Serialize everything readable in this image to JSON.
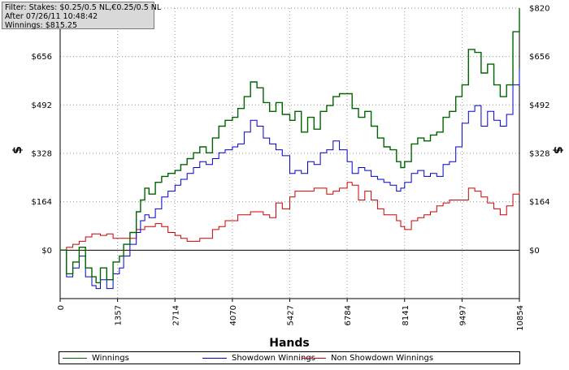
{
  "info": {
    "filter": "Filter: Stakes: $0.25/0.5 NL,€0.25/0.5 NL",
    "after": "After 07/26/11 10:48:42",
    "winnings": "Winnings: $815.25"
  },
  "chart_data": {
    "type": "line",
    "xlabel": "Hands",
    "ylabel": "$",
    "xlim": [
      0,
      10854
    ],
    "ylim": [
      -164,
      820
    ],
    "x_ticks": [
      "0",
      "1357",
      "2714",
      "4070",
      "5427",
      "6784",
      "8141",
      "9497",
      "10854"
    ],
    "y_ticks": [
      "$820",
      "$656",
      "$492",
      "$328",
      "$164",
      "$0"
    ],
    "y_tick_values": [
      820,
      656,
      492,
      328,
      164,
      0
    ],
    "grid": "dotted",
    "legend_position": "bottom",
    "series": [
      {
        "name": "Winnings",
        "color": "#006400",
        "x": [
          0,
          150,
          300,
          450,
          600,
          750,
          850,
          950,
          1100,
          1250,
          1400,
          1500,
          1650,
          1800,
          1900,
          2000,
          2100,
          2250,
          2400,
          2550,
          2714,
          2850,
          3000,
          3150,
          3300,
          3450,
          3600,
          3750,
          3900,
          4070,
          4200,
          4350,
          4500,
          4650,
          4800,
          4950,
          5100,
          5250,
          5427,
          5550,
          5700,
          5850,
          6000,
          6150,
          6300,
          6450,
          6600,
          6784,
          6900,
          7050,
          7200,
          7350,
          7500,
          7650,
          7800,
          7950,
          8050,
          8141,
          8300,
          8450,
          8600,
          8750,
          8900,
          9050,
          9200,
          9350,
          9497,
          9650,
          9800,
          9950,
          10100,
          10250,
          10400,
          10550,
          10700,
          10854
        ],
        "values": [
          0,
          -80,
          -40,
          10,
          -60,
          -90,
          -110,
          -60,
          -100,
          -40,
          -20,
          20,
          60,
          130,
          170,
          210,
          190,
          230,
          250,
          260,
          270,
          290,
          310,
          330,
          350,
          330,
          380,
          420,
          440,
          450,
          480,
          520,
          570,
          550,
          500,
          470,
          500,
          460,
          440,
          470,
          400,
          450,
          410,
          470,
          490,
          520,
          530,
          530,
          480,
          450,
          470,
          420,
          380,
          350,
          340,
          300,
          280,
          300,
          360,
          380,
          370,
          390,
          400,
          450,
          470,
          520,
          560,
          680,
          670,
          600,
          630,
          560,
          520,
          560,
          740,
          815
        ]
      },
      {
        "name": "Showdown Winnings",
        "color": "#0000cc",
        "x": [
          0,
          150,
          300,
          450,
          600,
          750,
          850,
          950,
          1100,
          1250,
          1400,
          1500,
          1650,
          1800,
          1900,
          2000,
          2100,
          2250,
          2400,
          2550,
          2714,
          2850,
          3000,
          3150,
          3300,
          3450,
          3600,
          3750,
          3900,
          4070,
          4200,
          4350,
          4500,
          4650,
          4800,
          4950,
          5100,
          5250,
          5427,
          5550,
          5700,
          5850,
          6000,
          6150,
          6300,
          6450,
          6600,
          6784,
          6900,
          7050,
          7200,
          7350,
          7500,
          7650,
          7800,
          7950,
          8050,
          8141,
          8300,
          8450,
          8600,
          8750,
          8900,
          9050,
          9200,
          9350,
          9497,
          9650,
          9800,
          9950,
          10100,
          10250,
          10400,
          10550,
          10700,
          10854
        ],
        "values": [
          0,
          -90,
          -60,
          -20,
          -90,
          -120,
          -130,
          -100,
          -130,
          -80,
          -60,
          -20,
          20,
          60,
          100,
          120,
          110,
          140,
          180,
          200,
          220,
          240,
          260,
          280,
          300,
          290,
          310,
          330,
          340,
          350,
          360,
          400,
          440,
          420,
          380,
          360,
          340,
          320,
          260,
          270,
          260,
          300,
          290,
          330,
          340,
          370,
          340,
          300,
          260,
          280,
          270,
          250,
          240,
          230,
          220,
          200,
          210,
          230,
          260,
          270,
          250,
          260,
          250,
          290,
          300,
          350,
          430,
          470,
          490,
          420,
          470,
          440,
          420,
          460,
          560,
          615
        ]
      },
      {
        "name": "Non Showdown Winnings",
        "color": "#cc0000",
        "x": [
          0,
          150,
          300,
          450,
          600,
          750,
          850,
          950,
          1100,
          1250,
          1400,
          1500,
          1650,
          1800,
          1900,
          2000,
          2100,
          2250,
          2400,
          2550,
          2714,
          2850,
          3000,
          3150,
          3300,
          3450,
          3600,
          3750,
          3900,
          4070,
          4200,
          4350,
          4500,
          4650,
          4800,
          4950,
          5100,
          5250,
          5427,
          5550,
          5700,
          5850,
          6000,
          6150,
          6300,
          6450,
          6600,
          6784,
          6900,
          7050,
          7200,
          7350,
          7500,
          7650,
          7800,
          7950,
          8050,
          8141,
          8300,
          8450,
          8600,
          8750,
          8900,
          9050,
          9200,
          9350,
          9497,
          9650,
          9800,
          9950,
          10100,
          10250,
          10400,
          10550,
          10700,
          10854
        ],
        "values": [
          0,
          10,
          20,
          30,
          45,
          55,
          55,
          50,
          55,
          40,
          40,
          40,
          40,
          70,
          70,
          80,
          80,
          90,
          80,
          60,
          50,
          40,
          30,
          30,
          40,
          40,
          70,
          80,
          100,
          100,
          120,
          120,
          130,
          130,
          120,
          110,
          160,
          140,
          180,
          200,
          200,
          200,
          210,
          210,
          190,
          200,
          210,
          230,
          220,
          170,
          200,
          170,
          140,
          120,
          120,
          100,
          80,
          70,
          100,
          110,
          120,
          130,
          150,
          160,
          170,
          170,
          170,
          210,
          200,
          180,
          160,
          140,
          120,
          150,
          190,
          200
        ]
      }
    ]
  }
}
